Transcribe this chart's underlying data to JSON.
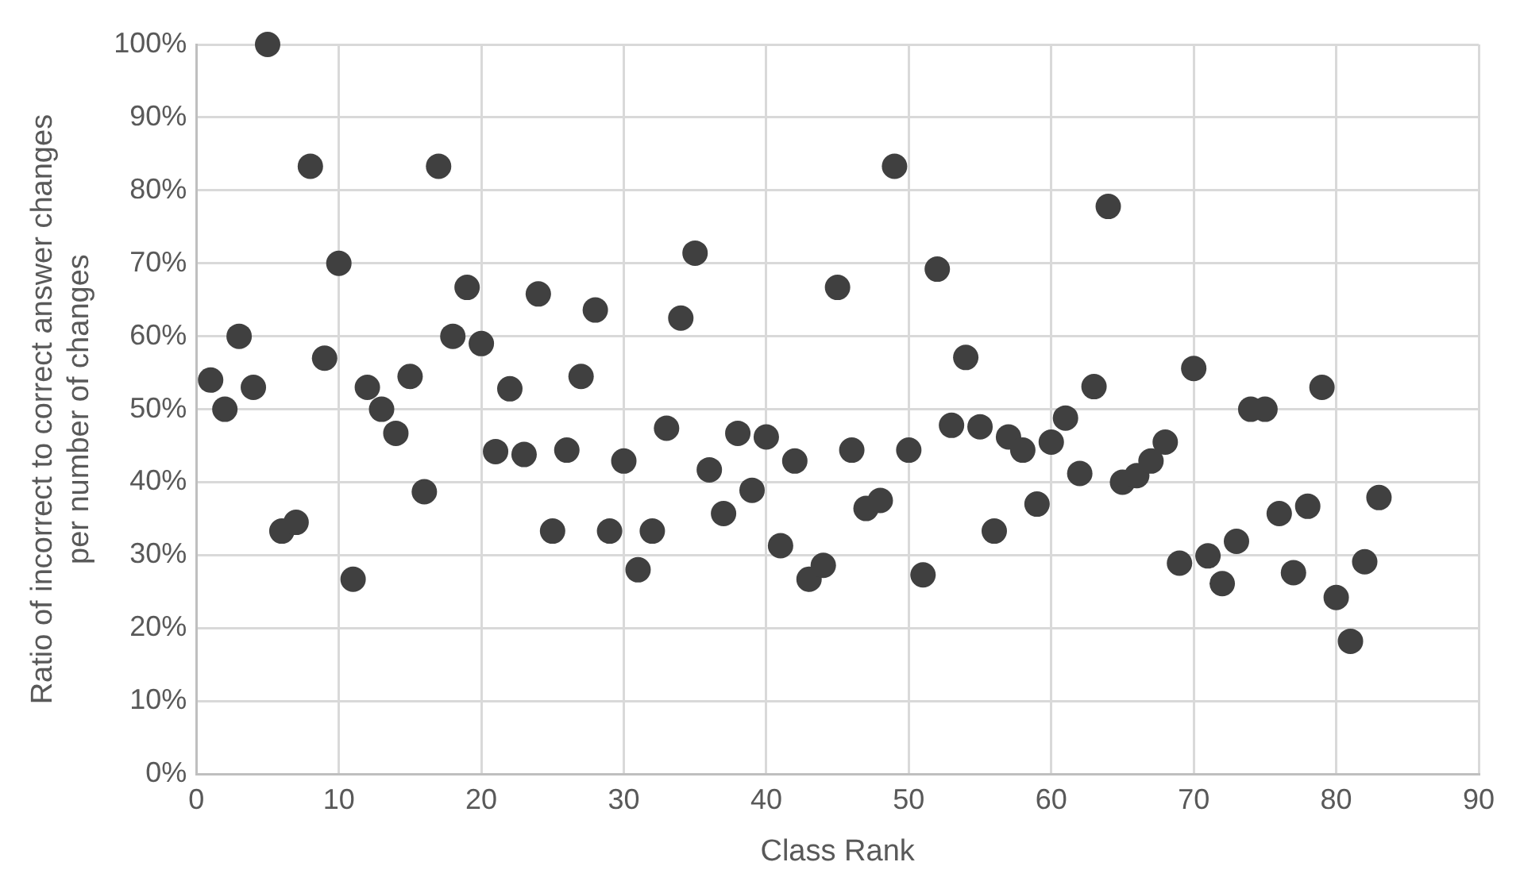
{
  "chart_data": {
    "type": "scatter",
    "xlabel": "Class Rank",
    "ylabel": "Ratio of incorrect to correct answer changes per number of changes",
    "x": [
      1,
      2,
      3,
      4,
      5,
      6,
      7,
      8,
      9,
      10,
      11,
      12,
      13,
      14,
      15,
      16,
      17,
      18,
      19,
      20,
      21,
      22,
      23,
      24,
      25,
      26,
      27,
      28,
      29,
      30,
      31,
      32,
      33,
      34,
      35,
      36,
      37,
      38,
      39,
      40,
      41,
      42,
      43,
      44,
      45,
      46,
      47,
      48,
      49,
      50,
      51,
      52,
      53,
      54,
      55,
      56,
      57,
      58,
      59,
      60,
      61,
      62,
      63,
      64,
      65,
      66,
      67,
      68,
      69,
      70,
      71,
      72,
      73,
      74,
      75,
      76,
      77,
      78,
      79,
      80,
      81,
      82,
      83
    ],
    "series": [
      {
        "color": "#404040",
        "values": [
          54,
          50,
          60,
          53,
          100,
          33.3,
          34.5,
          83.3,
          57,
          70,
          26.7,
          53,
          50,
          46.7,
          54.5,
          38.7,
          83.3,
          60,
          66.7,
          59,
          44.2,
          52.8,
          43.8,
          65.8,
          33.3,
          44.4,
          54.5,
          63.6,
          33.3,
          42.9,
          28,
          33.3,
          47.4,
          62.5,
          71.4,
          41.7,
          35.7,
          46.7,
          38.9,
          46.2,
          31.3,
          42.9,
          26.7,
          28.6,
          66.7,
          44.4,
          36.4,
          37.5,
          83.3,
          44.4,
          27.3,
          69.2,
          47.8,
          57.1,
          47.6,
          33.3,
          46.2,
          44.4,
          37,
          45.5,
          48.8,
          41.2,
          53.1,
          77.8,
          40,
          40.9,
          42.9,
          45.5,
          28.9,
          55.6,
          29.9,
          26.1,
          31.9,
          50,
          50,
          35.7,
          27.6,
          36.7,
          53,
          24.2,
          18.2,
          29.1,
          37.9
        ]
      }
    ],
    "xlim": [
      0,
      90
    ],
    "xticks": [
      0,
      10,
      20,
      30,
      40,
      50,
      60,
      70,
      80,
      90
    ],
    "ylim": [
      0,
      100
    ],
    "yticks": [
      {
        "value": 0,
        "label": "0%"
      },
      {
        "value": 10,
        "label": "10%"
      },
      {
        "value": 20,
        "label": "20%"
      },
      {
        "value": 30,
        "label": "30%"
      },
      {
        "value": 40,
        "label": "40%"
      },
      {
        "value": 50,
        "label": "50%"
      },
      {
        "value": 60,
        "label": "60%"
      },
      {
        "value": 70,
        "label": "70%"
      },
      {
        "value": 80,
        "label": "80%"
      },
      {
        "value": 90,
        "label": "90%"
      },
      {
        "value": 100,
        "label": "100%"
      }
    ],
    "grid": true,
    "legend": false,
    "marker": "circle"
  }
}
